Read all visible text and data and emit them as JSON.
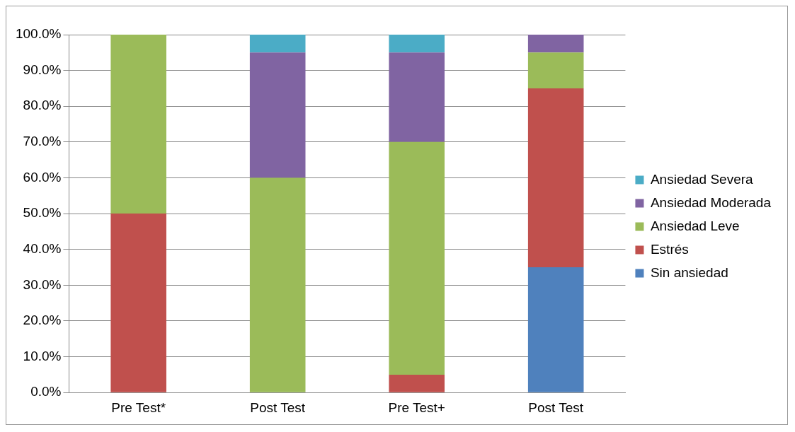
{
  "chart_data": {
    "type": "bar",
    "stacked": true,
    "categories": [
      "Pre Test*",
      "Post Test",
      "Pre Test+",
      "Post Test"
    ],
    "series": [
      {
        "name": "Sin ansiedad",
        "color": "#4f81bd",
        "values": [
          null,
          null,
          null,
          35
        ]
      },
      {
        "name": "Estrés",
        "color": "#c0504d",
        "values": [
          50,
          null,
          5,
          50
        ]
      },
      {
        "name": "Ansiedad Leve",
        "color": "#9bbb59",
        "values": [
          50,
          60,
          65,
          10
        ]
      },
      {
        "name": "Ansiedad Moderada",
        "color": "#8064a2",
        "values": [
          null,
          35,
          25,
          5
        ]
      },
      {
        "name": "Ansiedad Severa",
        "color": "#4bacc6",
        "values": [
          null,
          5,
          5,
          null
        ]
      }
    ],
    "ylim": [
      0,
      100
    ],
    "yticks": [
      {
        "value": 0,
        "label": "0.0%"
      },
      {
        "value": 10,
        "label": "10.0%"
      },
      {
        "value": 20,
        "label": "20.0%"
      },
      {
        "value": 30,
        "label": "30.0%"
      },
      {
        "value": 40,
        "label": "40.0%"
      },
      {
        "value": 50,
        "label": "50.0%"
      },
      {
        "value": 60,
        "label": "60.0%"
      },
      {
        "value": 70,
        "label": "70.0%"
      },
      {
        "value": 80,
        "label": "80.0%"
      },
      {
        "value": 90,
        "label": "90.0%"
      },
      {
        "value": 100,
        "label": "100.0%"
      }
    ],
    "grid": "y",
    "legend": "right"
  }
}
